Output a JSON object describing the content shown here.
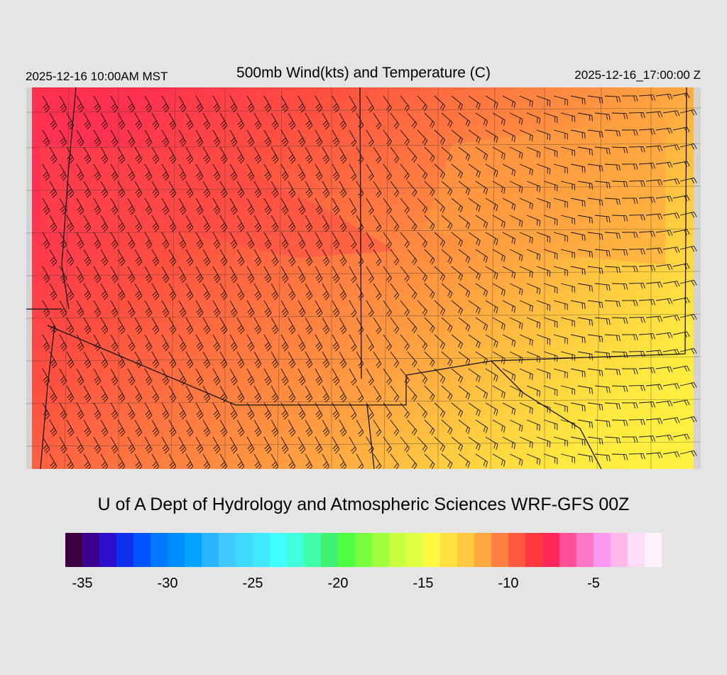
{
  "header": {
    "local_time": "2025-12-16 10:00AM MST",
    "title": "500mb Wind(kts) and Temperature (C)",
    "valid_time": "2025-12-16_17:00:00 Z"
  },
  "footer": {
    "credit": "U of A Dept of Hydrology and Atmospheric Sciences WRF-GFS 00Z"
  },
  "colorbar": {
    "colors": [
      "#3b0040",
      "#3a0090",
      "#2d10cc",
      "#1030f0",
      "#0055ff",
      "#0078ff",
      "#008cff",
      "#00a4ff",
      "#28b4ff",
      "#40c8ff",
      "#40d8ff",
      "#40e8ff",
      "#40ffff",
      "#40ffdc",
      "#40ffa8",
      "#40f070",
      "#50ff40",
      "#78ff40",
      "#a0ff40",
      "#c8ff40",
      "#e0ff40",
      "#fff840",
      "#ffe040",
      "#ffc840",
      "#ffa840",
      "#ff8040",
      "#ff5840",
      "#ff3840",
      "#ff2858",
      "#ff5098",
      "#ff78c8",
      "#ff98f0",
      "#ffb8e8",
      "#ffdcf8",
      "#fff2fc"
    ],
    "min": -36,
    "step": 1,
    "tick_labels": [
      "-35",
      "-30",
      "-25",
      "-20",
      "-15",
      "-10",
      "-5"
    ],
    "tick_values": [
      -35,
      -30,
      -25,
      -20,
      -15,
      -10,
      -5
    ]
  }
}
